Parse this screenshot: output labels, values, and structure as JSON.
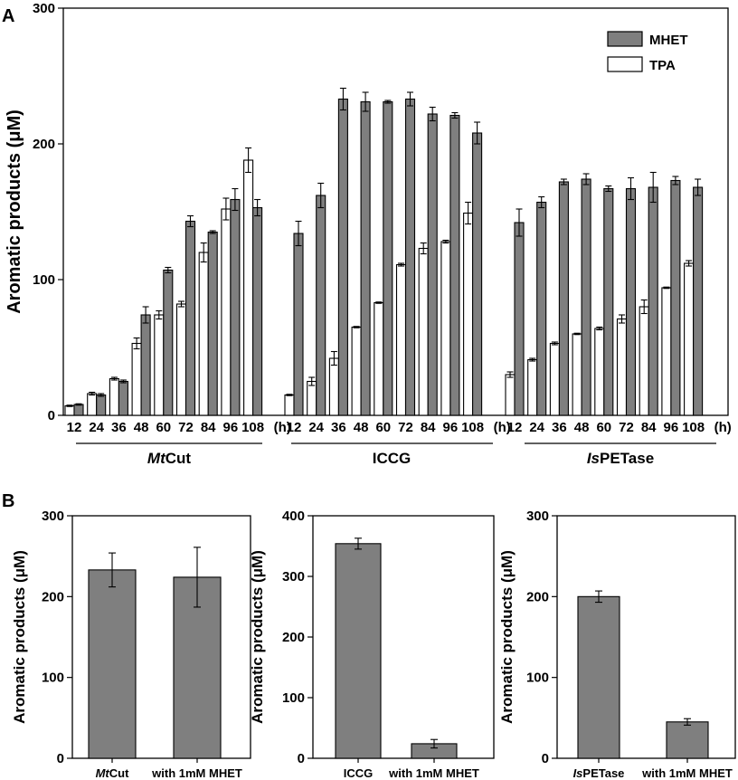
{
  "chart_data": [
    {
      "panel": "A",
      "type": "bar",
      "ylabel": "Aromatic products (μM)",
      "ylim": [
        0,
        300
      ],
      "yticks": [
        "0",
        "100",
        "200",
        "300"
      ],
      "time_unit": "(h)",
      "legend": [
        {
          "name": "MHET",
          "color": "#7f7f7f"
        },
        {
          "name": "TPA",
          "color": "#ffffff"
        }
      ],
      "series_colors": {
        "MHET": "#7f7f7f",
        "TPA": "#ffffff"
      },
      "groups": [
        {
          "name_italic": "Mt",
          "name_rest": "Cut",
          "times": [
            "12",
            "24",
            "36",
            "48",
            "60",
            "72",
            "84",
            "96",
            "108"
          ],
          "TPA": [
            7,
            16,
            27,
            53,
            74,
            82,
            120,
            152,
            188
          ],
          "TPA_err": [
            0.5,
            1,
            1,
            4,
            3,
            2,
            7,
            8,
            9
          ],
          "MHET": [
            8,
            15,
            25,
            74,
            107,
            143,
            135,
            159,
            153
          ],
          "MHET_err": [
            0.5,
            1,
            1,
            6,
            2,
            4,
            1,
            8,
            6
          ]
        },
        {
          "name_italic": "",
          "name_rest": "ICCG",
          "times": [
            "12",
            "24",
            "36",
            "48",
            "60",
            "72",
            "84",
            "96",
            "108"
          ],
          "TPA": [
            15,
            25,
            42,
            65,
            83,
            111,
            123,
            128,
            149
          ],
          "TPA_err": [
            0.5,
            3,
            5,
            0.5,
            0.5,
            1,
            4,
            1,
            8
          ],
          "MHET": [
            134,
            162,
            233,
            231,
            231,
            233,
            222,
            221,
            208
          ],
          "MHET_err": [
            9,
            9,
            8,
            7,
            1,
            5,
            5,
            2,
            8
          ]
        },
        {
          "name_italic": "Is",
          "name_rest": "PETase",
          "times": [
            "12",
            "24",
            "36",
            "48",
            "60",
            "72",
            "84",
            "96",
            "108"
          ],
          "TPA": [
            30,
            41,
            53,
            60,
            64,
            71,
            80,
            94,
            112
          ],
          "TPA_err": [
            2,
            1,
            1,
            0.5,
            1,
            3,
            5,
            0.5,
            2
          ],
          "MHET": [
            142,
            157,
            172,
            174,
            167,
            167,
            168,
            173,
            168
          ],
          "MHET_err": [
            10,
            4,
            2,
            4,
            2,
            8,
            11,
            3,
            6
          ]
        }
      ]
    },
    {
      "panel": "B",
      "type": "bar",
      "ylabel": "Aromatic products (μM)",
      "ylim": [
        0,
        300
      ],
      "yticks": [
        "0",
        "100",
        "200",
        "300"
      ],
      "categories": [
        {
          "italic": "Mt",
          "rest": "Cut"
        },
        {
          "italic": "",
          "rest": "with 1mM MHET"
        }
      ],
      "values": [
        233,
        224
      ],
      "errors": [
        21,
        37
      ],
      "bar_color": "#7f7f7f"
    },
    {
      "panel": "B",
      "type": "bar",
      "ylabel": "Aromatic products (μM)",
      "ylim": [
        0,
        400
      ],
      "yticks": [
        "0",
        "100",
        "200",
        "300",
        "400"
      ],
      "categories": [
        {
          "italic": "",
          "rest": "ICCG"
        },
        {
          "italic": "",
          "rest": "with 1mM MHET"
        }
      ],
      "values": [
        354,
        24
      ],
      "errors": [
        9,
        7
      ],
      "bar_color": "#7f7f7f"
    },
    {
      "panel": "B",
      "type": "bar",
      "ylabel": "Aromatic products (μM)",
      "ylim": [
        0,
        300
      ],
      "yticks": [
        "0",
        "100",
        "200",
        "300"
      ],
      "categories": [
        {
          "italic": "Is",
          "rest": "PETase"
        },
        {
          "italic": "",
          "rest": "with 1mM MHET"
        }
      ],
      "values": [
        200,
        45
      ],
      "errors": [
        7,
        4
      ],
      "bar_color": "#7f7f7f"
    }
  ]
}
